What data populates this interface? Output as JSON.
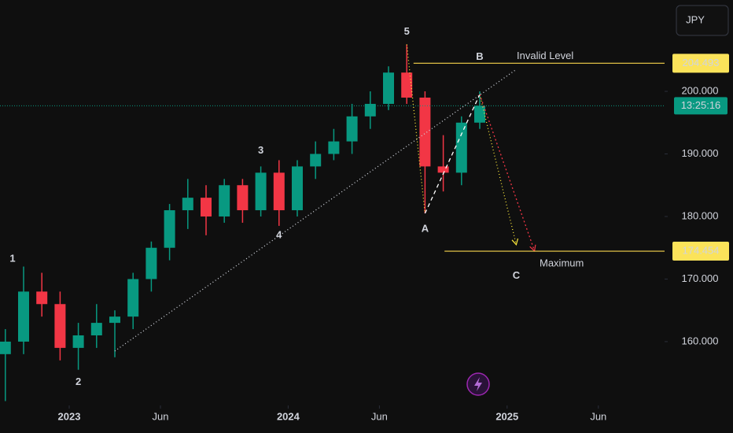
{
  "chart_data": {
    "type": "candlestick",
    "currency": "JPY",
    "x": [
      "2022-09",
      "2022-10",
      "2022-11",
      "2022-12",
      "2023-01",
      "2023-02",
      "2023-03",
      "2023-04",
      "2023-05",
      "2023-06",
      "2023-07",
      "2023-08",
      "2023-09",
      "2023-10",
      "2023-11",
      "2023-12",
      "2024-01",
      "2024-02",
      "2024-03",
      "2024-04",
      "2024-05",
      "2024-06",
      "2024-07",
      "2024-08",
      "2024-09",
      "2024-10",
      "2024-11"
    ],
    "open": [
      158,
      160,
      168,
      166,
      159,
      161,
      163,
      164,
      170,
      175,
      181,
      183,
      180,
      185,
      181,
      187,
      181,
      188,
      190,
      192,
      196,
      198,
      203,
      199,
      188,
      187,
      195
    ],
    "high": [
      162,
      172,
      171,
      168,
      163,
      166,
      165,
      171,
      176,
      182,
      186,
      185,
      186,
      186,
      188,
      189,
      189,
      192,
      194,
      198,
      200,
      204,
      207.5,
      200,
      193,
      196,
      200
    ],
    "low": [
      150.5,
      158,
      164,
      157,
      155.5,
      159,
      157.5,
      162,
      168,
      173,
      178,
      177,
      179,
      179,
      180,
      178.5,
      180,
      186,
      189,
      190,
      194,
      197,
      198,
      180.5,
      184,
      185,
      194
    ],
    "close": [
      160,
      168,
      166,
      159,
      161,
      163,
      164,
      170,
      175,
      181,
      183,
      180,
      185,
      181,
      187,
      181,
      188,
      190,
      192,
      196,
      198,
      203,
      199,
      188,
      187,
      195,
      197.7
    ],
    "up_color": "#089981",
    "down_color": "#f23645",
    "ylim": [
      149.8,
      214.6
    ],
    "yticks": [
      {
        "value": 160,
        "label": "160.000"
      },
      {
        "value": 170,
        "label": "170.000"
      },
      {
        "value": 180,
        "label": "180.000"
      },
      {
        "value": 190,
        "label": "190.000"
      },
      {
        "value": 200,
        "label": "200.000"
      }
    ],
    "xticks": [
      {
        "value": "2023-01",
        "label": "2023"
      },
      {
        "value": "2023-06",
        "label": "Jun"
      },
      {
        "value": "2024-01",
        "label": "2024"
      },
      {
        "value": "2024-06",
        "label": "Jun"
      },
      {
        "value": "2025-01",
        "label": "2025"
      },
      {
        "value": "2025-06",
        "label": "Jun"
      }
    ],
    "grid": false,
    "last_price": 197.7,
    "countdown": "13:25:16",
    "levels": [
      {
        "price": 204.493,
        "text": "Invalid Level"
      },
      {
        "price": 174.454,
        "text": "Maximum"
      }
    ],
    "wave_labels": [
      {
        "text": "1",
        "x": "2022-10",
        "price": 173.2,
        "color": "#d1d4dc"
      },
      {
        "text": "2",
        "x": "2023-01",
        "price": 153.5,
        "color": "#d1d4dc"
      },
      {
        "text": "3",
        "x": "2023-11",
        "price": 190.5,
        "color": "#d1d4dc"
      },
      {
        "text": "4",
        "x": "2023-12",
        "price": 177,
        "color": "#d1d4dc"
      },
      {
        "text": "5",
        "x": "2024-07",
        "price": 209.5,
        "color": "#d1d4dc"
      },
      {
        "text": "A",
        "x": "2024-08",
        "price": 178,
        "color": "#4caf50"
      },
      {
        "text": "B",
        "x": "2024-11",
        "price": 205.5,
        "color": "#4caf50"
      },
      {
        "text": "C",
        "x": "2025-01",
        "price": 170.5,
        "color": "#4caf50"
      }
    ],
    "drawings": [
      {
        "color": "#d1d4dc",
        "dash": "1 3",
        "points": [
          [
            "2023-03",
            158.5
          ],
          [
            "2025-01",
            203.5
          ]
        ]
      },
      {
        "color": "#ffeb3b",
        "dash": "1 3",
        "points": [
          [
            "2024-07",
            207.5
          ],
          [
            "2024-08",
            180.5
          ]
        ]
      },
      {
        "color": "#ffffff",
        "dash": "5 4",
        "points": [
          [
            "2024-08",
            180.5
          ],
          [
            "2024-11",
            199.5
          ]
        ]
      },
      {
        "color": "#ffeb3b",
        "dash": "1 3",
        "points": [
          [
            "2024-11",
            199.5
          ],
          [
            "2025-01",
            175.5
          ]
        ]
      },
      {
        "color": "#f23645",
        "dash": "2 3",
        "points": [
          [
            "2024-11",
            199.5
          ],
          [
            "2025-02",
            174.5
          ]
        ]
      }
    ]
  }
}
